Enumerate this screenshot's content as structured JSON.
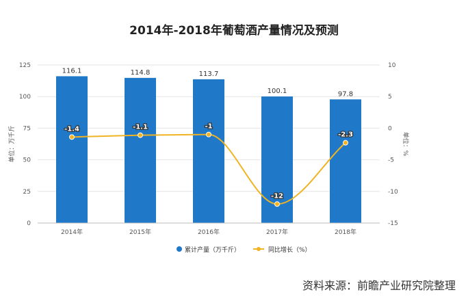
{
  "chart_data": {
    "type": "bar",
    "title": "2014年-2018年葡萄酒产量情况及预测",
    "categories": [
      "2014年",
      "2015年",
      "2016年",
      "2017年",
      "2018年"
    ],
    "series": [
      {
        "name": "累计产量（万千斤）",
        "type": "bar",
        "axis": "left",
        "values": [
          116.1,
          114.8,
          113.7,
          100.1,
          97.8
        ],
        "labels": [
          "116.1",
          "114.8",
          "113.7",
          "100.1",
          "97.8"
        ],
        "color": "#1f78c8"
      },
      {
        "name": "同比增长（%）",
        "type": "line",
        "axis": "right",
        "smooth": true,
        "values": [
          -1.4,
          -1.1,
          -1,
          -12,
          -2.3
        ],
        "labels": [
          "-1.4",
          "-1.1",
          "-1",
          "-12",
          "-2.3"
        ],
        "color": "#f0b323"
      }
    ],
    "ylabel": "单位：万千斤",
    "ylabel_right": "单位：%",
    "ylim": [
      0,
      125
    ],
    "ylim_right": [
      -15,
      10
    ],
    "yticks": [
      0,
      25,
      50,
      75,
      100,
      125
    ],
    "yticks_right": [
      -15,
      -10,
      -5,
      0,
      5,
      10
    ],
    "grid": true,
    "legend_position": "bottom"
  },
  "source": "资料来源：前瞻产业研究院整理",
  "colors": {
    "bar": "#1f78c8",
    "line": "#f0b323",
    "grid": "#e4e4e4",
    "text": "#555555"
  }
}
